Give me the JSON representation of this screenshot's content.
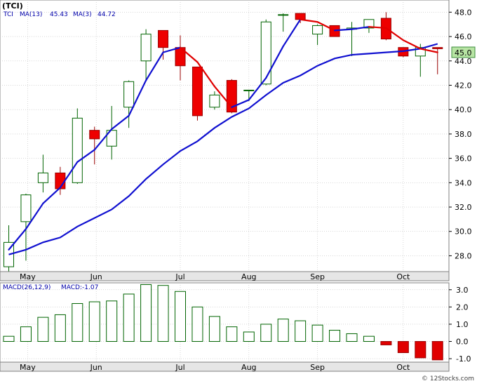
{
  "title": "(TCI)",
  "watermark": "© 12Stocks.com",
  "colors": {
    "background": "#ffffff",
    "panel_bg": "#ffffff",
    "axis_bg": "#e6e6e6",
    "grid": "#c0c0c0",
    "up": "#ffffff",
    "up_border": "#006400",
    "down": "#ee0000",
    "down_border": "#990000",
    "wick": "#006400",
    "ma13": "#1010d0",
    "ma3": "#e00000",
    "macd_border": "#006400",
    "macd_neg": "#e00000",
    "label_text": "#0000aa",
    "price_tag_bg": "#b7e4a3"
  },
  "chart_data": [
    {
      "type": "candlestick",
      "ticker": "TCI",
      "legend": {
        "ticker": "TCI",
        "ma13_label": "MA(13)",
        "ma13_value": "45.43",
        "ma3_label": "MA(3)",
        "ma3_value": "44.72"
      },
      "last_price_tag": "45.0",
      "ylim": [
        26.7,
        49.0
      ],
      "y_ticks": [
        28.0,
        30.0,
        32.0,
        34.0,
        36.0,
        38.0,
        40.0,
        42.0,
        44.0,
        46.0,
        48.0
      ],
      "x_labels": [
        "May",
        "Jun",
        "Jul",
        "Aug",
        "Sep",
        "Oct"
      ],
      "x_label_index": [
        1.1,
        5.1,
        10.0,
        14.0,
        18.0,
        23.0
      ],
      "candles": [
        {
          "o": 27.1,
          "h": 30.5,
          "l": 26.7,
          "c": 29.1
        },
        {
          "o": 30.8,
          "h": 33.1,
          "l": 27.6,
          "c": 33.0
        },
        {
          "o": 34.0,
          "h": 36.3,
          "l": 33.2,
          "c": 34.8
        },
        {
          "o": 34.8,
          "h": 35.3,
          "l": 33.0,
          "c": 33.5
        },
        {
          "o": 34.0,
          "h": 40.1,
          "l": 33.9,
          "c": 39.3
        },
        {
          "o": 38.3,
          "h": 38.6,
          "l": 35.5,
          "c": 37.6
        },
        {
          "o": 37.0,
          "h": 40.3,
          "l": 35.9,
          "c": 38.3
        },
        {
          "o": 40.2,
          "h": 42.4,
          "l": 38.5,
          "c": 42.3
        },
        {
          "o": 44.0,
          "h": 46.6,
          "l": 42.4,
          "c": 46.2
        },
        {
          "o": 46.5,
          "h": 46.5,
          "l": 44.1,
          "c": 45.1
        },
        {
          "o": 45.1,
          "h": 46.1,
          "l": 42.4,
          "c": 43.6
        },
        {
          "o": 43.5,
          "h": 43.5,
          "l": 39.1,
          "c": 39.5
        },
        {
          "o": 40.2,
          "h": 41.5,
          "l": 40.0,
          "c": 41.2
        },
        {
          "o": 42.4,
          "h": 42.5,
          "l": 39.7,
          "c": 39.8
        },
        {
          "o": 41.6,
          "h": 41.6,
          "l": 40.7,
          "c": 41.6
        },
        {
          "o": 42.1,
          "h": 47.4,
          "l": 42.0,
          "c": 47.2
        },
        {
          "o": 47.8,
          "h": 47.9,
          "l": 46.4,
          "c": 47.8
        },
        {
          "o": 47.9,
          "h": 47.9,
          "l": 47.1,
          "c": 47.4
        },
        {
          "o": 46.2,
          "h": 47.0,
          "l": 45.3,
          "c": 46.9
        },
        {
          "o": 46.9,
          "h": 46.9,
          "l": 46.0,
          "c": 46.0
        },
        {
          "o": 46.6,
          "h": 47.2,
          "l": 44.4,
          "c": 46.7
        },
        {
          "o": 46.7,
          "h": 47.2,
          "l": 46.3,
          "c": 47.4
        },
        {
          "o": 47.5,
          "h": 48.0,
          "l": 45.7,
          "c": 45.8
        },
        {
          "o": 45.1,
          "h": 45.1,
          "l": 44.3,
          "c": 44.4
        },
        {
          "o": 44.4,
          "h": 45.4,
          "l": 42.7,
          "c": 45.1
        },
        {
          "o": 45.1,
          "h": 45.1,
          "l": 42.9,
          "c": 45.0
        }
      ],
      "ma13": [
        28.1,
        28.5,
        29.1,
        29.5,
        30.4,
        31.1,
        31.8,
        32.9,
        34.3,
        35.5,
        36.6,
        37.4,
        38.5,
        39.4,
        40.1,
        41.2,
        42.2,
        42.8,
        43.6,
        44.2,
        44.5,
        44.6,
        44.7,
        44.8,
        45.0,
        45.4
      ],
      "ma3": [
        28.5,
        30.2,
        32.3,
        33.6,
        35.7,
        36.7,
        38.4,
        39.5,
        42.4,
        44.7,
        45.1,
        43.9,
        41.9,
        40.2,
        40.8,
        42.6,
        45.2,
        47.4,
        47.2,
        46.5,
        46.6,
        46.8,
        46.7,
        45.7,
        45.0,
        44.7
      ]
    },
    {
      "type": "bar",
      "name": "MACD",
      "legend": {
        "label": "MACD(26,12,9)",
        "value_label": "MACD:-1.07"
      },
      "ylim": [
        -1.2,
        3.4
      ],
      "y_ticks": [
        -1.0,
        0.0,
        1.0,
        2.0,
        3.0
      ],
      "x_labels": [
        "May",
        "Jun",
        "Jul",
        "Aug",
        "Sep",
        "Oct"
      ],
      "values": [
        0.3,
        0.85,
        1.4,
        1.55,
        2.2,
        2.3,
        2.35,
        2.75,
        3.3,
        3.25,
        2.9,
        2.0,
        1.45,
        0.85,
        0.55,
        1.0,
        1.3,
        1.2,
        0.95,
        0.65,
        0.45,
        0.3,
        -0.2,
        -0.65,
        -0.95,
        -1.07
      ]
    }
  ]
}
